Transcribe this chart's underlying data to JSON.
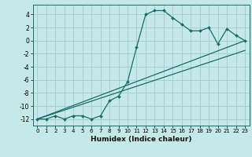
{
  "xlabel": "Humidex (Indice chaleur)",
  "bg_color": "#c5e8e8",
  "grid_color": "#a8d0d0",
  "line_color": "#1a6b6b",
  "marker_color": "#1a6b6b",
  "xlim": [
    -0.5,
    23.5
  ],
  "ylim": [
    -13,
    5.5
  ],
  "xticks": [
    0,
    1,
    2,
    3,
    4,
    5,
    6,
    7,
    8,
    9,
    10,
    11,
    12,
    13,
    14,
    15,
    16,
    17,
    18,
    19,
    20,
    21,
    22,
    23
  ],
  "yticks": [
    -12,
    -10,
    -8,
    -6,
    -4,
    -2,
    0,
    2,
    4
  ],
  "curve1_x": [
    0,
    1,
    2,
    3,
    4,
    5,
    6,
    7,
    8,
    9,
    10,
    11,
    12,
    13,
    14,
    15,
    16,
    17,
    18,
    19,
    20,
    21,
    22,
    23
  ],
  "curve1_y": [
    -12,
    -12,
    -11.5,
    -12,
    -11.5,
    -11.5,
    -12,
    -11.5,
    -9.2,
    -8.5,
    -6.3,
    -1.0,
    4.0,
    4.6,
    4.6,
    3.5,
    2.5,
    1.5,
    1.5,
    2.0,
    -0.5,
    1.8,
    0.8,
    0.0
  ],
  "curve2_x": [
    0,
    23
  ],
  "curve2_y": [
    -12,
    0.0
  ],
  "curve3_x": [
    0,
    23
  ],
  "curve3_y": [
    -12,
    -1.5
  ]
}
